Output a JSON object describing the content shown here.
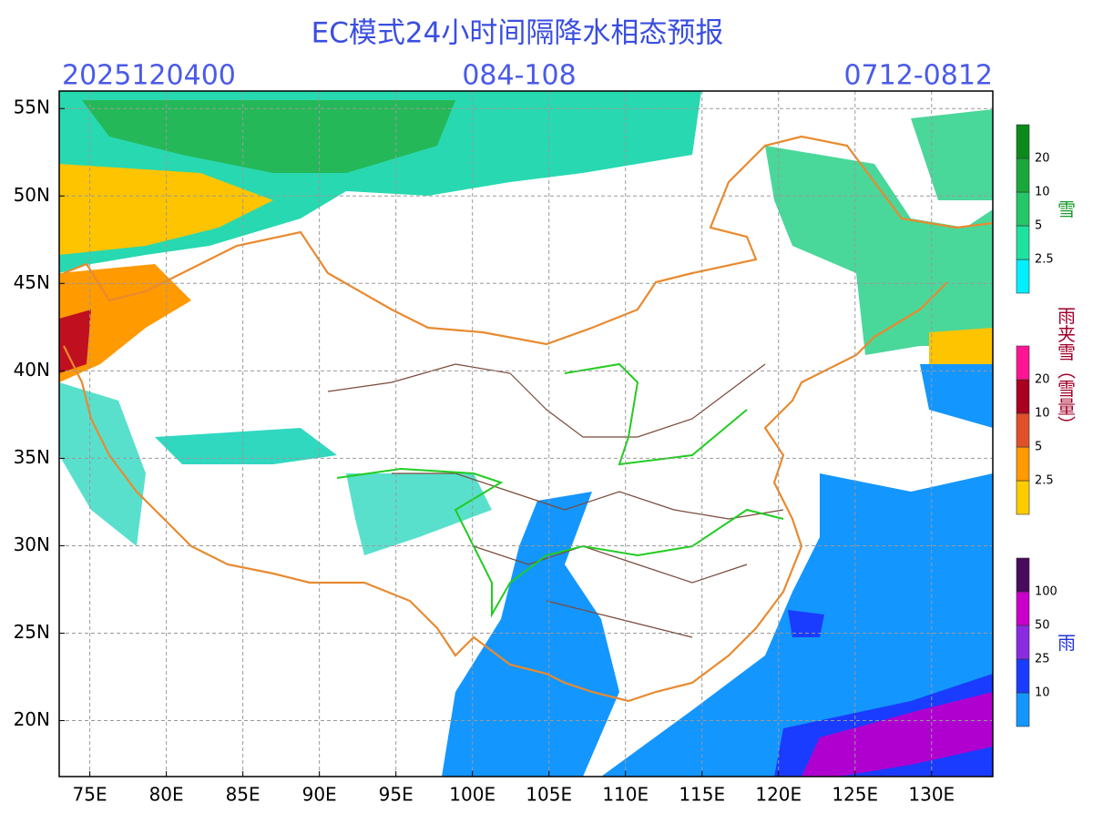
{
  "title": "EC模式24小时间隔降水相态预报",
  "header": {
    "init_time": "2025120400",
    "lead_hours": "084-108",
    "valid_period": "0712-0812"
  },
  "map": {
    "lon_range": [
      73,
      134
    ],
    "lat_range": [
      16.8,
      56
    ],
    "lon_ticks": [
      {
        "value": 75,
        "label": "75E"
      },
      {
        "value": 80,
        "label": "80E"
      },
      {
        "value": 85,
        "label": "85E"
      },
      {
        "value": 90,
        "label": "90E"
      },
      {
        "value": 95,
        "label": "95E"
      },
      {
        "value": 100,
        "label": "100E"
      },
      {
        "value": 105,
        "label": "105E"
      },
      {
        "value": 110,
        "label": "110E"
      },
      {
        "value": 115,
        "label": "115E"
      },
      {
        "value": 120,
        "label": "120E"
      },
      {
        "value": 125,
        "label": "125E"
      },
      {
        "value": 130,
        "label": "130E"
      }
    ],
    "lat_ticks": [
      {
        "value": 20,
        "label": "20N"
      },
      {
        "value": 25,
        "label": "25N"
      },
      {
        "value": 30,
        "label": "30N"
      },
      {
        "value": 35,
        "label": "35N"
      },
      {
        "value": 40,
        "label": "40N"
      },
      {
        "value": 45,
        "label": "45N"
      },
      {
        "value": 50,
        "label": "50N"
      },
      {
        "value": 55,
        "label": "55N"
      }
    ],
    "grid": true
  },
  "legends": [
    {
      "label": "雪",
      "label_color": "#1a9a2a",
      "levels": [
        2.5,
        5,
        10,
        20
      ],
      "colors": [
        "#00f0ff",
        "#1ee3a0",
        "#25c768",
        "#1aa83a",
        "#0b8a1b"
      ]
    },
    {
      "label": "雨夹雪（雪量）",
      "label_color": "#a0002a",
      "levels": [
        2.5,
        5,
        10,
        20
      ],
      "colors": [
        "#ffcc00",
        "#ff9a00",
        "#e0502a",
        "#a8001e",
        "#ff1493"
      ]
    },
    {
      "label": "雨",
      "label_color": "#2233dd",
      "levels": [
        10,
        25,
        50,
        100
      ],
      "colors": [
        "#1496ff",
        "#1a3cff",
        "#8a2be2",
        "#c800c8",
        "#4a0a5e"
      ]
    }
  ]
}
